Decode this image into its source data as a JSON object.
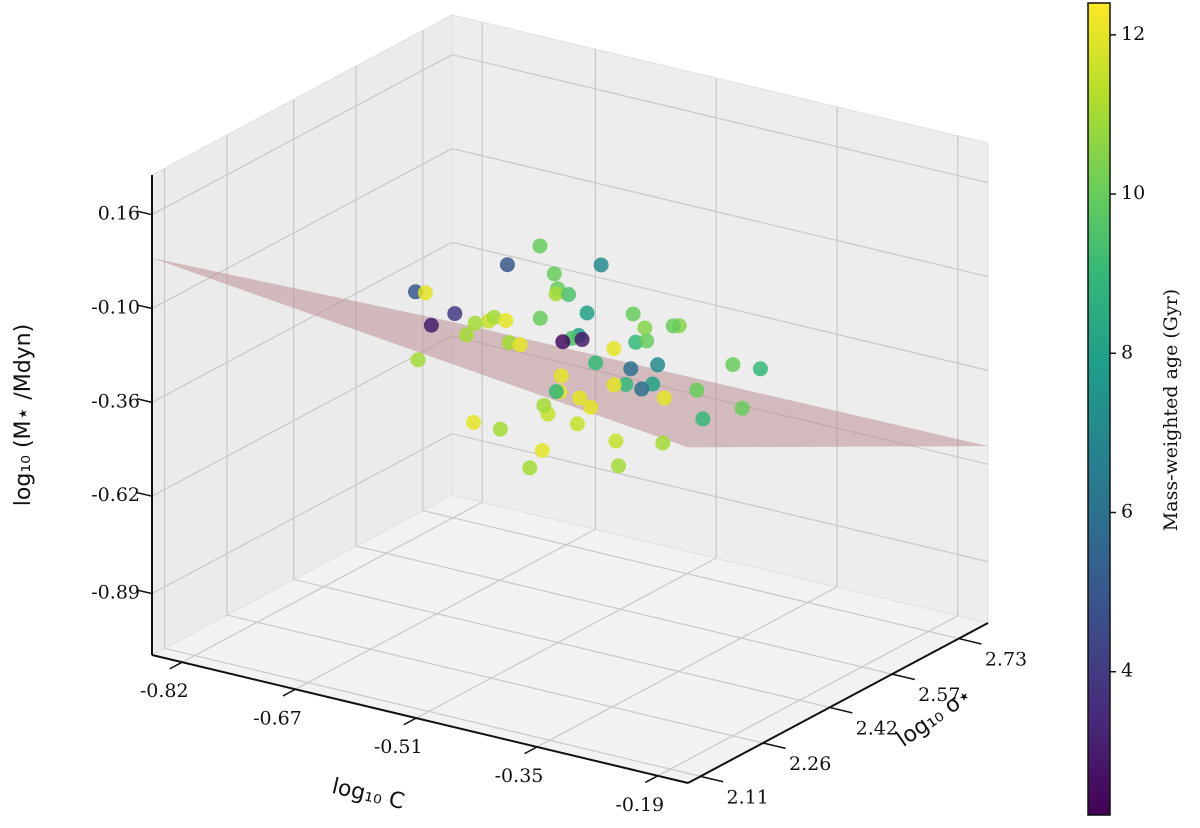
{
  "chart_data": {
    "type": "scatter3d",
    "xlabel": "log₁₀ C",
    "ylabel": "log₁₀ σ⋆",
    "zlabel": "log₁₀ (M⋆ /Mdyn)",
    "xlim": [
      -0.86,
      -0.15
    ],
    "ylim": [
      2.08,
      2.8
    ],
    "zlim": [
      -1.06,
      0.27
    ],
    "xticks": [
      -0.82,
      -0.67,
      -0.51,
      -0.35,
      -0.19
    ],
    "yticks": [
      2.11,
      2.26,
      2.42,
      2.57,
      2.73
    ],
    "zticks": [
      -0.89,
      -0.62,
      -0.36,
      {
        "value": -0.1,
        "label": "-0.10"
      },
      0.16
    ],
    "grid": true,
    "plane": {
      "color": "#b98a8e",
      "x": [
        -0.86,
        -0.15,
        -0.15,
        -0.86
      ],
      "y": [
        2.08,
        2.08,
        2.8,
        2.8
      ],
      "z": [
        0.04,
        -0.13,
        -0.57,
        -0.58
      ]
    },
    "points": {
      "x": [
        -0.62,
        -0.55,
        -0.48,
        -0.42,
        -0.58,
        -0.51,
        -0.45,
        -0.38,
        -0.66,
        -0.6,
        -0.53,
        -0.47,
        -0.4,
        -0.35,
        -0.57,
        -0.5,
        -0.44,
        -0.63,
        -0.56,
        -0.49,
        -0.43,
        -0.37,
        -0.59,
        -0.52,
        -0.46,
        -0.41,
        -0.54,
        -0.48,
        -0.61,
        -0.44,
        -0.39,
        -0.33,
        -0.68,
        -0.64,
        -0.57,
        -0.5,
        -0.45,
        -0.36,
        -0.31,
        -0.53,
        -0.47,
        -0.42,
        -0.58,
        -0.49,
        -0.55,
        -0.46,
        -0.4,
        -0.52,
        -0.6,
        -0.43,
        -0.38,
        -0.34,
        -0.65,
        -0.51,
        -0.47,
        -0.56,
        -0.44,
        -0.49,
        -0.41,
        -0.54
      ],
      "y": [
        2.4,
        2.45,
        2.5,
        2.42,
        2.38,
        2.47,
        2.52,
        2.44,
        2.35,
        2.43,
        2.49,
        2.4,
        2.46,
        2.55,
        2.33,
        2.41,
        2.48,
        2.39,
        2.51,
        2.36,
        2.45,
        2.5,
        2.44,
        2.3,
        2.42,
        2.53,
        2.47,
        2.37,
        2.48,
        2.34,
        2.43,
        2.58,
        2.41,
        2.32,
        2.52,
        2.46,
        2.39,
        2.4,
        2.5,
        2.56,
        2.31,
        2.47,
        2.43,
        2.38,
        2.29,
        2.51,
        2.36,
        2.45,
        2.54,
        2.41,
        2.33,
        2.46,
        2.37,
        2.49,
        2.28,
        2.42,
        2.57,
        2.35,
        2.44,
        2.5
      ],
      "z": [
        -0.25,
        -0.2,
        -0.28,
        -0.3,
        -0.18,
        -0.24,
        -0.22,
        -0.33,
        -0.12,
        -0.21,
        -0.27,
        -0.35,
        -0.26,
        -0.29,
        -0.15,
        -0.31,
        -0.23,
        -0.19,
        -0.16,
        -0.38,
        -0.28,
        -0.34,
        -0.22,
        -0.4,
        -0.26,
        -0.2,
        -0.14,
        -0.32,
        -0.1,
        -0.37,
        -0.29,
        -0.31,
        -0.17,
        -0.28,
        -0.13,
        -0.24,
        -0.36,
        -0.42,
        -0.36,
        -0.11,
        -0.44,
        -0.21,
        -0.27,
        -0.33,
        -0.39,
        -0.18,
        -0.41,
        -0.25,
        -0.08,
        -0.3,
        -0.45,
        -0.38,
        -0.22,
        -0.19,
        -0.47,
        -0.26,
        -0.24,
        -0.35,
        -0.32,
        -0.16
      ],
      "c": [
        11,
        10,
        12,
        9,
        11.5,
        8,
        10.5,
        12,
        5,
        11,
        9.5,
        12,
        7,
        10,
        11,
        12,
        9,
        4,
        10,
        11.5,
        6,
        10,
        12,
        11,
        9,
        10.5,
        11,
        12,
        5,
        11.5,
        8,
        9,
        12,
        11,
        10,
        3,
        12,
        11,
        10,
        7,
        12,
        10,
        11,
        9,
        12,
        10,
        11.5,
        2.5,
        10,
        12,
        11,
        9,
        3,
        8,
        11,
        12,
        10,
        11,
        6,
        9.5
      ]
    },
    "colorbar": {
      "label": "Mass-weighted age (Gyr)",
      "colormap": "viridis",
      "lim": [
        2.2,
        12.4
      ],
      "ticks": [
        4,
        6,
        8,
        10,
        12
      ]
    }
  }
}
